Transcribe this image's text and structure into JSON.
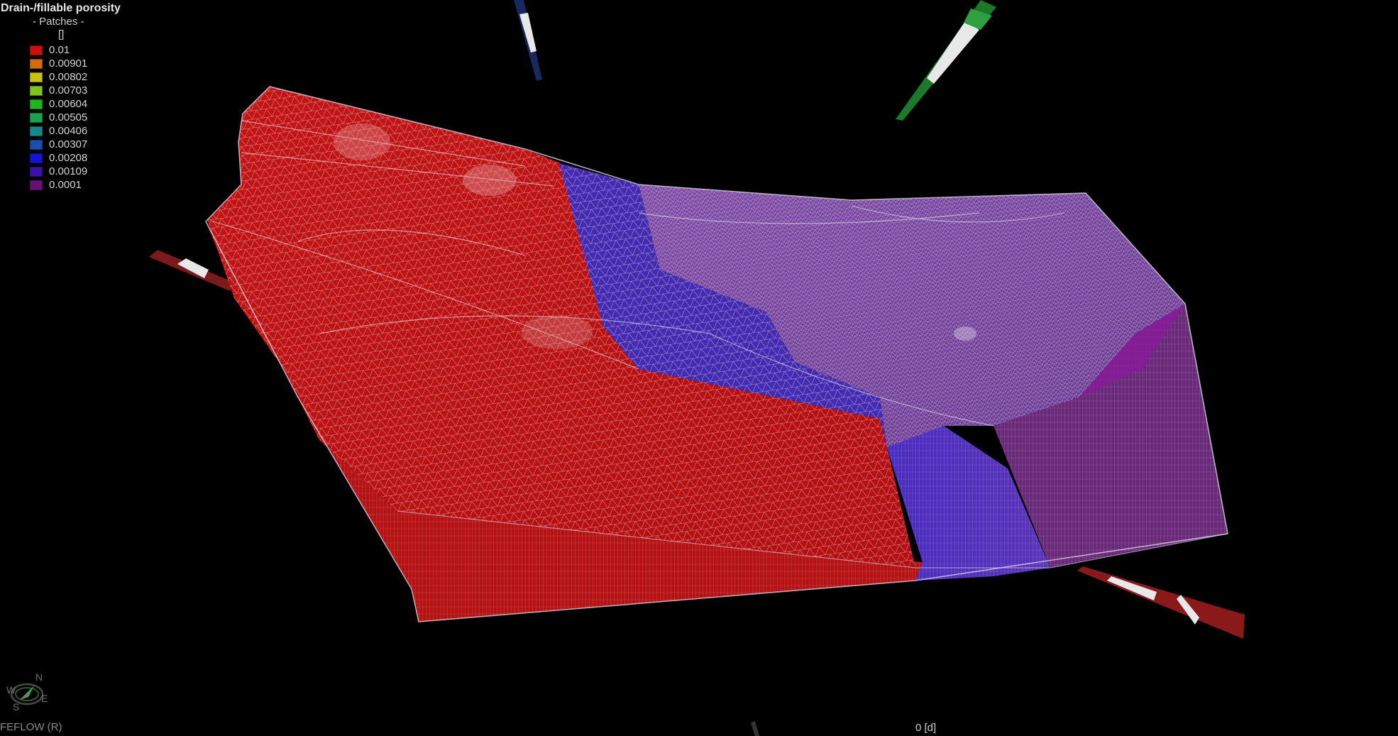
{
  "legend": {
    "title": "Drain-/fillable porosity",
    "subtitle": "- Patches -",
    "unit": "[]",
    "items": [
      {
        "label": "0.01",
        "color": "#cc1010"
      },
      {
        "label": "0.00901",
        "color": "#d46a12"
      },
      {
        "label": "0.00802",
        "color": "#c9c214"
      },
      {
        "label": "0.00703",
        "color": "#7ec41a"
      },
      {
        "label": "0.00604",
        "color": "#1fb51d"
      },
      {
        "label": "0.00505",
        "color": "#18a34c"
      },
      {
        "label": "0.00406",
        "color": "#148b8b"
      },
      {
        "label": "0.00307",
        "color": "#1a4fb0"
      },
      {
        "label": "0.00208",
        "color": "#1414d8"
      },
      {
        "label": "0.00109",
        "color": "#3a12a8"
      },
      {
        "label": "0.0001",
        "color": "#6a0e78"
      }
    ]
  },
  "compass": {
    "north": "N",
    "south": "S",
    "east": "E",
    "west": "W"
  },
  "footer": {
    "app_label": "FEFLOW (R)",
    "time": "0 [d]"
  },
  "colors": {
    "background": "#000000",
    "high_porosity": "#cc1010",
    "mid_porosity": "#3a2aa8",
    "low_porosity": "#7a3a9a",
    "mesh_lines": "#e8e8f0"
  }
}
